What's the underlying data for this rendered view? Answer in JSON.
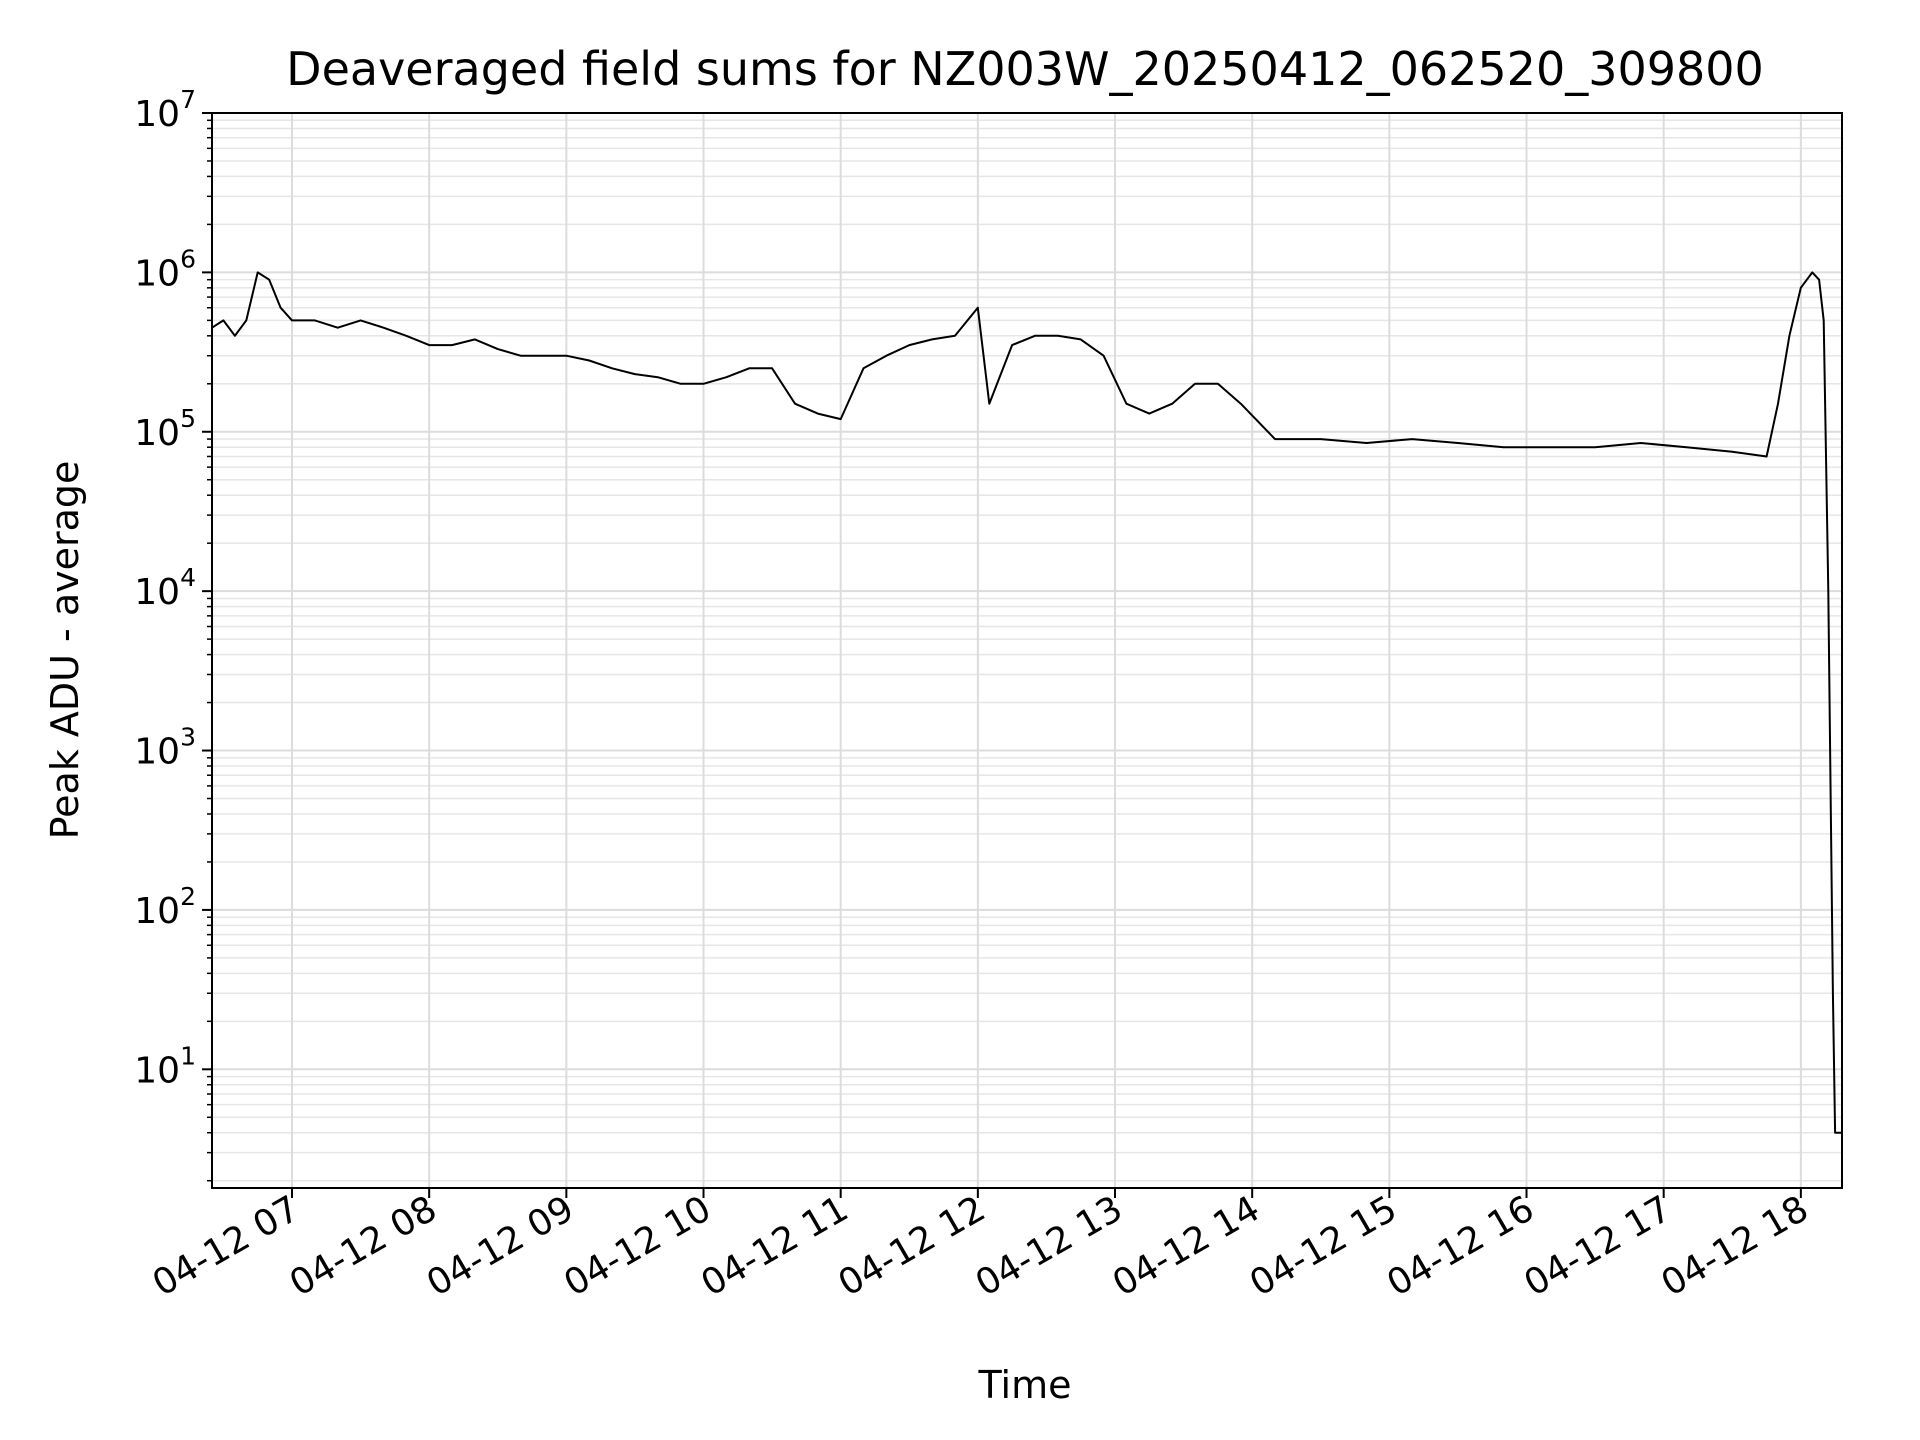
{
  "chart_data": {
    "type": "line",
    "title": "Deaveraged field sums for NZ003W_20250412_062520_309800",
    "xlabel": "Time",
    "ylabel": "Peak ADU - average",
    "xscale": "time",
    "yscale": "log",
    "xlim": [
      "2025-04-12T06:25",
      "2025-04-12T18:18"
    ],
    "ylim": [
      1.8,
      10000000
    ],
    "grid": true,
    "line_color": "#000000",
    "x_ticks": [
      {
        "value": "2025-04-12T07:00",
        "label": "04-12 07"
      },
      {
        "value": "2025-04-12T08:00",
        "label": "04-12 08"
      },
      {
        "value": "2025-04-12T09:00",
        "label": "04-12 09"
      },
      {
        "value": "2025-04-12T10:00",
        "label": "04-12 10"
      },
      {
        "value": "2025-04-12T11:00",
        "label": "04-12 11"
      },
      {
        "value": "2025-04-12T12:00",
        "label": "04-12 12"
      },
      {
        "value": "2025-04-12T13:00",
        "label": "04-12 13"
      },
      {
        "value": "2025-04-12T14:00",
        "label": "04-12 14"
      },
      {
        "value": "2025-04-12T15:00",
        "label": "04-12 15"
      },
      {
        "value": "2025-04-12T16:00",
        "label": "04-12 16"
      },
      {
        "value": "2025-04-12T17:00",
        "label": "04-12 17"
      },
      {
        "value": "2025-04-12T18:00",
        "label": "04-12 18"
      }
    ],
    "y_ticks": [
      {
        "value": 10,
        "base": "10",
        "exp": "1"
      },
      {
        "value": 100,
        "base": "10",
        "exp": "2"
      },
      {
        "value": 1000,
        "base": "10",
        "exp": "3"
      },
      {
        "value": 10000,
        "base": "10",
        "exp": "4"
      },
      {
        "value": 100000,
        "base": "10",
        "exp": "5"
      },
      {
        "value": 1000000,
        "base": "10",
        "exp": "6"
      },
      {
        "value": 10000000,
        "base": "10",
        "exp": "7"
      }
    ],
    "series": [
      {
        "x": [
          "2025-04-12T06:25",
          "2025-04-12T06:30",
          "2025-04-12T06:35",
          "2025-04-12T06:40",
          "2025-04-12T06:45",
          "2025-04-12T06:50",
          "2025-04-12T06:55",
          "2025-04-12T07:00",
          "2025-04-12T07:10",
          "2025-04-12T07:20",
          "2025-04-12T07:30",
          "2025-04-12T07:40",
          "2025-04-12T07:50",
          "2025-04-12T08:00",
          "2025-04-12T08:10",
          "2025-04-12T08:20",
          "2025-04-12T08:30",
          "2025-04-12T08:40",
          "2025-04-12T08:50",
          "2025-04-12T09:00",
          "2025-04-12T09:10",
          "2025-04-12T09:20",
          "2025-04-12T09:30",
          "2025-04-12T09:40",
          "2025-04-12T09:50",
          "2025-04-12T10:00",
          "2025-04-12T10:10",
          "2025-04-12T10:20",
          "2025-04-12T10:30",
          "2025-04-12T10:40",
          "2025-04-12T10:50",
          "2025-04-12T11:00",
          "2025-04-12T11:10",
          "2025-04-12T11:20",
          "2025-04-12T11:30",
          "2025-04-12T11:40",
          "2025-04-12T11:50",
          "2025-04-12T12:00",
          "2025-04-12T12:05",
          "2025-04-12T12:15",
          "2025-04-12T12:25",
          "2025-04-12T12:35",
          "2025-04-12T12:45",
          "2025-04-12T12:55",
          "2025-04-12T13:05",
          "2025-04-12T13:15",
          "2025-04-12T13:25",
          "2025-04-12T13:35",
          "2025-04-12T13:45",
          "2025-04-12T13:55",
          "2025-04-12T14:10",
          "2025-04-12T14:30",
          "2025-04-12T14:50",
          "2025-04-12T15:10",
          "2025-04-12T15:30",
          "2025-04-12T15:50",
          "2025-04-12T16:10",
          "2025-04-12T16:30",
          "2025-04-12T16:50",
          "2025-04-12T17:10",
          "2025-04-12T17:30",
          "2025-04-12T17:45",
          "2025-04-12T17:50",
          "2025-04-12T17:55",
          "2025-04-12T18:00",
          "2025-04-12T18:05",
          "2025-04-12T18:08",
          "2025-04-12T18:10",
          "2025-04-12T18:12",
          "2025-04-12T18:14",
          "2025-04-12T18:15",
          "2025-04-12T18:18"
        ],
        "y": [
          450000,
          500000,
          400000,
          500000,
          1000000,
          900000,
          600000,
          500000,
          500000,
          450000,
          500000,
          450000,
          400000,
          350000,
          350000,
          380000,
          330000,
          300000,
          300000,
          300000,
          280000,
          250000,
          230000,
          220000,
          200000,
          200000,
          220000,
          250000,
          250000,
          150000,
          130000,
          120000,
          250000,
          300000,
          350000,
          380000,
          400000,
          600000,
          150000,
          350000,
          400000,
          400000,
          380000,
          300000,
          150000,
          130000,
          150000,
          200000,
          200000,
          150000,
          90000,
          90000,
          85000,
          90000,
          85000,
          80000,
          80000,
          80000,
          85000,
          80000,
          75000,
          70000,
          150000,
          400000,
          800000,
          1000000,
          900000,
          500000,
          10000,
          30,
          4,
          4
        ]
      }
    ]
  }
}
